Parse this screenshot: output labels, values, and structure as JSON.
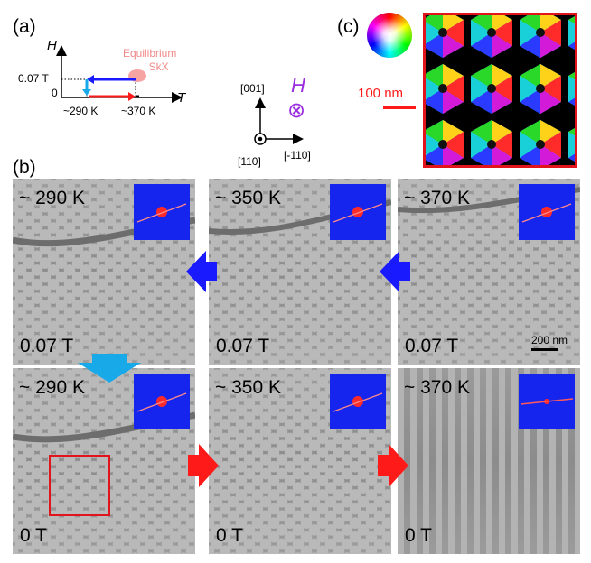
{
  "panel_a": {
    "label": "(a)",
    "y_axis": "H",
    "x_axis": "T",
    "field_tick": "0.07 T",
    "zero_tick": "0",
    "temp_low": "~290 K",
    "temp_high": "~370 K",
    "equilibrium_line1": "Equilibrium",
    "equilibrium_line2": "SkX"
  },
  "axes_legend": {
    "up": "[001]",
    "out": "[110]",
    "right": "[-110]",
    "field": "H",
    "field_symbol": "⊗"
  },
  "panel_b": {
    "label": "(b)",
    "scale_bar": "200 nm",
    "top_row": [
      {
        "temp": "~ 290 K",
        "field": "0.07 T"
      },
      {
        "temp": "~ 350 K",
        "field": "0.07 T"
      },
      {
        "temp": "~ 370 K",
        "field": "0.07 T"
      }
    ],
    "bottom_row": [
      {
        "temp": "~ 290 K",
        "field": "0 T"
      },
      {
        "temp": "~ 350 K",
        "field": "0 T"
      },
      {
        "temp": "~ 370 K",
        "field": "0 T"
      }
    ]
  },
  "panel_c": {
    "label": "(c)",
    "scale_bar": "100 nm"
  },
  "colors": {
    "red": "#ff1a1a",
    "blue": "#1a1aff",
    "cyan": "#17a9e8",
    "fft_blue": "#1525ee",
    "equilibrium_pink": "#f08a8a",
    "field_purple": "#9a2de0"
  }
}
